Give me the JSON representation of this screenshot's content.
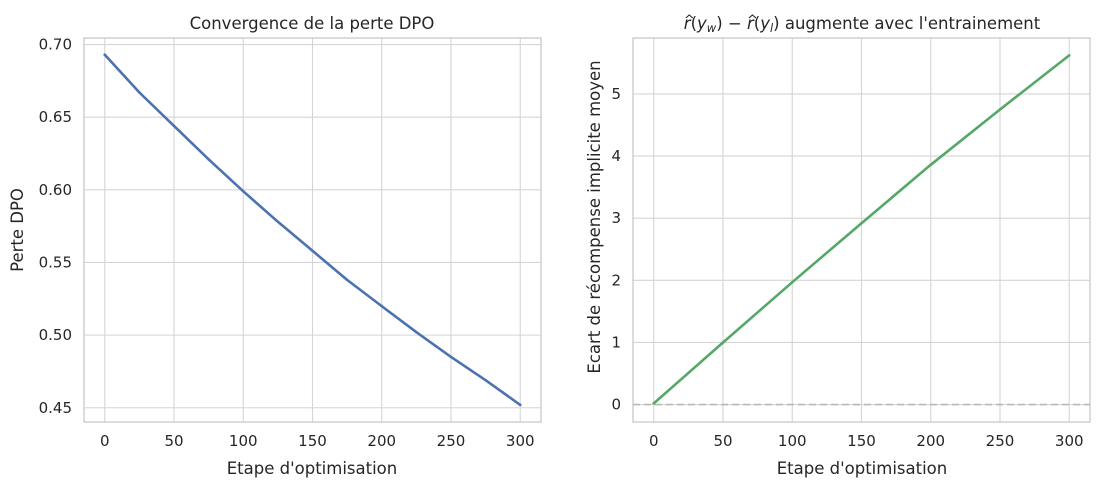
{
  "chart_data": [
    {
      "type": "line",
      "title": "Convergence de la perte DPO",
      "xlabel": "Etape d'optimisation",
      "ylabel": "Perte DPO",
      "xlim": [
        -15,
        315
      ],
      "ylim": [
        0.4402,
        0.7045
      ],
      "xticks": [
        "0",
        "50",
        "100",
        "150",
        "200",
        "250",
        "300"
      ],
      "xtick_values": [
        0,
        50,
        100,
        150,
        200,
        250,
        300
      ],
      "yticks": [
        "0.45",
        "0.50",
        "0.55",
        "0.60",
        "0.65",
        "0.70"
      ],
      "ytick_values": [
        0.45,
        0.5,
        0.55,
        0.6,
        0.65,
        0.7
      ],
      "grid": true,
      "series": [
        {
          "color": "#4c72b0",
          "x": [
            0,
            25,
            50,
            75,
            100,
            125,
            150,
            175,
            200,
            225,
            250,
            275,
            300
          ],
          "y": [
            0.693,
            0.667,
            0.644,
            0.621,
            0.599,
            0.578,
            0.558,
            0.538,
            0.52,
            0.502,
            0.485,
            0.469,
            0.452
          ]
        }
      ]
    },
    {
      "type": "line",
      "title": "r̂(y_w) − r̂(y_l) augmente avec l'entrainement",
      "title_parts": {
        "r": "r",
        "open": "(",
        "y": "y",
        "w": "w",
        "close_minus": ") −",
        "l": "l",
        "close": ")",
        "rest": "augmente avec l'entrainement"
      },
      "xlabel": "Etape d'optimisation",
      "ylabel": "Ecart de récompense implicite moyen",
      "xlim": [
        -15,
        315
      ],
      "ylim": [
        -0.28,
        5.9
      ],
      "xticks": [
        "0",
        "50",
        "100",
        "150",
        "200",
        "250",
        "300"
      ],
      "xtick_values": [
        0,
        50,
        100,
        150,
        200,
        250,
        300
      ],
      "yticks": [
        "0",
        "1",
        "2",
        "3",
        "4",
        "5"
      ],
      "ytick_values": [
        0,
        1,
        2,
        3,
        4,
        5
      ],
      "grid": true,
      "reference_line": {
        "y": 0,
        "style": "dashed",
        "color": "#b8b8b8"
      },
      "series": [
        {
          "color": "#55a868",
          "x": [
            0,
            50,
            100,
            150,
            200,
            250,
            300
          ],
          "y": [
            0.02,
            1.0,
            1.97,
            2.92,
            3.86,
            4.75,
            5.62
          ]
        }
      ]
    }
  ]
}
